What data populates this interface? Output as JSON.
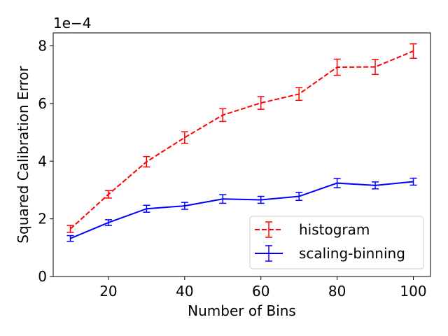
{
  "chart_data": {
    "type": "line",
    "xlabel": "Number of Bins",
    "ylabel": "Squared Calibration Error",
    "y_offset_label": "1e−4",
    "xlim": [
      5.5,
      104.5
    ],
    "ylim": [
      0,
      8.45
    ],
    "x_ticks": [
      20,
      40,
      60,
      80,
      100
    ],
    "y_ticks": [
      0,
      2,
      4,
      6,
      8
    ],
    "x_tick_labels": [
      "20",
      "40",
      "60",
      "80",
      "100"
    ],
    "y_tick_labels": [
      "0",
      "2",
      "4",
      "6",
      "8"
    ],
    "grid": false,
    "legend_position": "lower-right",
    "x": [
      10,
      20,
      30,
      40,
      50,
      60,
      70,
      80,
      90,
      100
    ],
    "series": [
      {
        "name": "histogram",
        "color": "#ff0000",
        "linestyle": "dashed",
        "values": [
          1.65,
          2.85,
          3.98,
          4.82,
          5.6,
          6.02,
          6.33,
          7.26,
          7.27,
          7.82
        ],
        "errors": [
          0.12,
          0.13,
          0.18,
          0.2,
          0.22,
          0.22,
          0.22,
          0.28,
          0.26,
          0.25
        ]
      },
      {
        "name": "scaling-binning",
        "color": "#0000ff",
        "linestyle": "solid",
        "values": [
          1.32,
          1.87,
          2.35,
          2.45,
          2.69,
          2.66,
          2.78,
          3.24,
          3.16,
          3.29
        ],
        "errors": [
          0.1,
          0.1,
          0.12,
          0.12,
          0.15,
          0.12,
          0.14,
          0.16,
          0.12,
          0.12
        ]
      }
    ]
  }
}
